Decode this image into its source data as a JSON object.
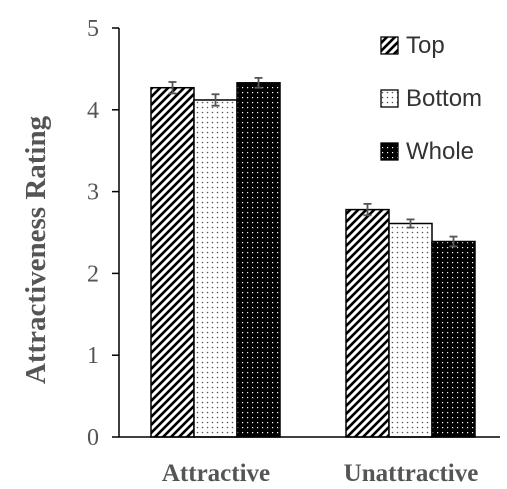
{
  "chart_data": {
    "type": "bar",
    "title": "",
    "xlabel": "",
    "ylabel": "Attractiveness Rating",
    "categories": [
      "Attractive",
      "Unattractive"
    ],
    "series": [
      {
        "name": "Top",
        "pattern": "diagonal-stripes",
        "values": [
          4.27,
          2.78
        ],
        "errors": [
          0.07,
          0.07
        ]
      },
      {
        "name": "Bottom",
        "pattern": "dots",
        "values": [
          4.12,
          2.61
        ],
        "errors": [
          0.07,
          0.05
        ]
      },
      {
        "name": "Whole",
        "pattern": "dark-dots",
        "values": [
          4.33,
          2.39
        ],
        "errors": [
          0.06,
          0.06
        ]
      }
    ],
    "ylim": [
      0,
      5
    ],
    "yticks": [
      "0",
      "1",
      "2",
      "3",
      "4",
      "5"
    ],
    "grid": false,
    "legend_position": "top-right",
    "colors": {
      "ink": "#000000",
      "label": "#555555",
      "background": "#ffffff"
    }
  }
}
